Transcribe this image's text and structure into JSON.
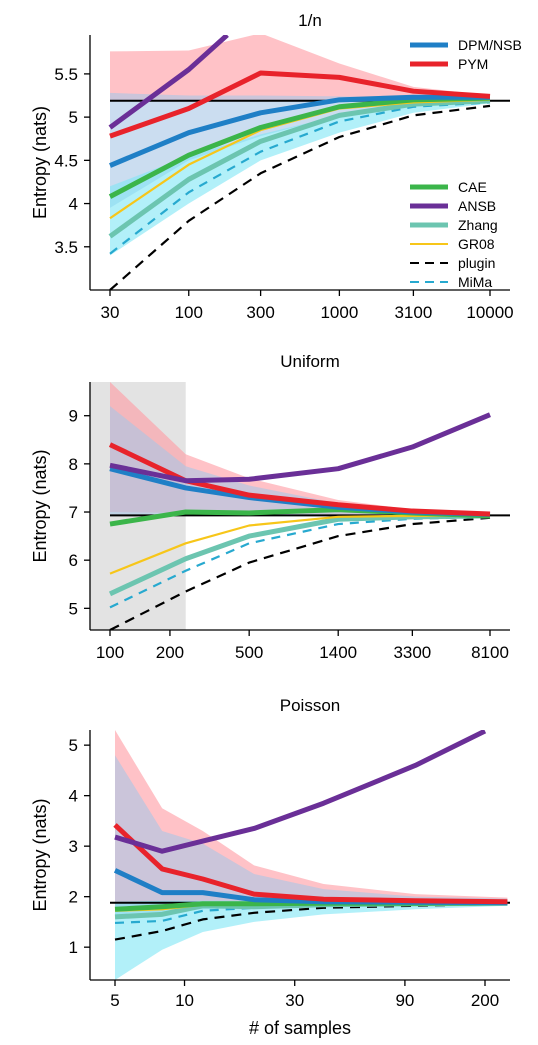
{
  "xlabel": "# of samples",
  "chart_data": [
    {
      "type": "line",
      "title": "1/n",
      "xlabel": "",
      "ylabel": "Entropy (nats)",
      "x_scale": "log",
      "xticks": [
        30,
        100,
        300,
        1000,
        3100,
        10000
      ],
      "xtick_labels": [
        "30",
        "100",
        "300",
        "1000",
        "3100",
        "10000"
      ],
      "yticks": [
        3.5,
        4,
        4.5,
        5,
        5.5
      ],
      "ytick_labels": [
        "3.5",
        "4",
        "4.5",
        "5",
        "5.5"
      ],
      "ylim": [
        3.0,
        5.95
      ],
      "true_entropy": 5.19,
      "legend": [
        {
          "name": "DPM/NSB",
          "color": "#1f7fc6",
          "style": "solid",
          "width": 5
        },
        {
          "name": "PYM",
          "color": "#e8232b",
          "style": "solid",
          "width": 5
        },
        {
          "name": "CAE",
          "color": "#3bb54a",
          "style": "solid",
          "width": 5
        },
        {
          "name": "ANSB",
          "color": "#6a2f97",
          "style": "solid",
          "width": 5
        },
        {
          "name": "Zhang",
          "color": "#6cc5b0",
          "style": "solid",
          "width": 5
        },
        {
          "name": "GR08",
          "color": "#f7c619",
          "style": "solid",
          "width": 2
        },
        {
          "name": "plugin",
          "color": "#000000",
          "style": "dashed",
          "width": 2
        },
        {
          "name": "MiMa",
          "color": "#27a9cf",
          "style": "dashed",
          "width": 2
        }
      ],
      "bands": [
        {
          "name": "PYM",
          "color": "#ff9aa2",
          "opacity": 0.6,
          "x": [
            30,
            100,
            300,
            1000,
            3100,
            10000
          ],
          "upper": [
            5.76,
            5.77,
            5.97,
            5.62,
            5.35,
            5.25
          ],
          "lower": [
            5.18,
            5.18,
            5.18,
            5.18,
            5.18,
            5.18
          ]
        },
        {
          "name": "DPM/NSB",
          "color": "#a9c7e6",
          "opacity": 0.6,
          "x": [
            30,
            100,
            300,
            1000,
            3100,
            10000
          ],
          "upper": [
            5.28,
            5.25,
            5.25,
            5.24,
            5.23,
            5.23
          ],
          "lower": [
            3.95,
            4.5,
            4.78,
            5.02,
            5.15,
            5.19
          ]
        },
        {
          "name": "Zhang",
          "color": "#7fe6f5",
          "opacity": 0.6,
          "x": [
            30,
            100,
            300,
            1000,
            3100,
            10000
          ],
          "upper": [
            4.2,
            4.55,
            4.8,
            5.02,
            5.13,
            5.17
          ],
          "lower": [
            3.4,
            4.0,
            4.5,
            4.82,
            5.05,
            5.16
          ]
        }
      ],
      "series": [
        {
          "name": "plugin",
          "color": "#000000",
          "dash": "10,7",
          "width": 2.2,
          "x": [
            30,
            100,
            300,
            1000,
            3100,
            10000
          ],
          "y": [
            3.0,
            3.8,
            4.35,
            4.77,
            5.02,
            5.13
          ]
        },
        {
          "name": "MiMa",
          "color": "#27a9cf",
          "dash": "9,7",
          "width": 2.2,
          "x": [
            30,
            100,
            300,
            1000,
            3100,
            10000
          ],
          "y": [
            3.42,
            4.13,
            4.6,
            4.95,
            5.12,
            5.17
          ]
        },
        {
          "name": "Zhang",
          "color": "#6cc5b0",
          "dash": "",
          "width": 5,
          "x": [
            30,
            100,
            300,
            1000,
            3100,
            10000
          ],
          "y": [
            3.62,
            4.28,
            4.72,
            5.02,
            5.15,
            5.19
          ]
        },
        {
          "name": "GR08",
          "color": "#f7c619",
          "dash": "",
          "width": 2.2,
          "x": [
            30,
            100,
            300,
            1000,
            3100,
            10000
          ],
          "y": [
            3.83,
            4.45,
            4.85,
            5.1,
            5.17,
            5.2
          ]
        },
        {
          "name": "CAE",
          "color": "#3bb54a",
          "dash": "",
          "width": 5,
          "x": [
            30,
            100,
            300,
            1000,
            3100,
            10000
          ],
          "y": [
            4.08,
            4.56,
            4.88,
            5.12,
            5.2,
            5.22
          ]
        },
        {
          "name": "DPM/NSB",
          "color": "#1f7fc6",
          "dash": "",
          "width": 5,
          "x": [
            30,
            100,
            300,
            1000,
            3100,
            10000
          ],
          "y": [
            4.44,
            4.82,
            5.05,
            5.2,
            5.23,
            5.23
          ]
        },
        {
          "name": "PYM",
          "color": "#e8232b",
          "dash": "",
          "width": 5,
          "x": [
            30,
            100,
            300,
            1000,
            3100,
            10000
          ],
          "y": [
            4.78,
            5.1,
            5.51,
            5.46,
            5.3,
            5.24
          ]
        },
        {
          "name": "ANSB",
          "color": "#6a2f97",
          "dash": "",
          "width": 5,
          "x": [
            30,
            100,
            180
          ],
          "y": [
            4.88,
            5.55,
            5.95
          ]
        }
      ]
    },
    {
      "type": "line",
      "title": "Uniform",
      "xlabel": "",
      "ylabel": "Entropy (nats)",
      "x_scale": "log",
      "xticks": [
        100,
        200,
        500,
        1400,
        3300,
        8100
      ],
      "xtick_labels": [
        "100",
        "200",
        "500",
        "1400",
        "3300",
        "8100"
      ],
      "yticks": [
        5,
        6,
        7,
        8,
        9
      ],
      "ytick_labels": [
        "5",
        "6",
        "7",
        "8",
        "9"
      ],
      "ylim": [
        4.55,
        9.7
      ],
      "true_entropy": 6.93,
      "shaded_x_range": [
        100,
        240
      ],
      "bands": [
        {
          "name": "PYM",
          "color": "#ff9aa2",
          "opacity": 0.6,
          "x": [
            100,
            240,
            500,
            1400,
            3300,
            8100
          ],
          "upper": [
            9.7,
            8.2,
            7.7,
            7.25,
            7.05,
            6.98
          ],
          "lower": [
            7.0,
            6.98,
            6.97,
            6.95,
            6.94,
            6.93
          ]
        },
        {
          "name": "DPM/NSB",
          "color": "#a9c7e6",
          "opacity": 0.6,
          "x": [
            100,
            240,
            500,
            1400,
            3300,
            8100
          ],
          "upper": [
            9.2,
            7.95,
            7.55,
            7.18,
            7.02,
            6.96
          ],
          "lower": [
            6.95,
            6.95,
            6.94,
            6.93,
            6.93,
            6.92
          ]
        }
      ],
      "series": [
        {
          "name": "plugin",
          "color": "#000000",
          "dash": "10,7",
          "width": 2.2,
          "x": [
            100,
            240,
            500,
            1400,
            3300,
            8100
          ],
          "y": [
            4.55,
            5.35,
            5.95,
            6.5,
            6.75,
            6.88
          ]
        },
        {
          "name": "MiMa",
          "color": "#27a9cf",
          "dash": "9,7",
          "width": 2.2,
          "x": [
            100,
            240,
            500,
            1400,
            3300,
            8100
          ],
          "y": [
            5.02,
            5.78,
            6.35,
            6.75,
            6.86,
            6.9
          ]
        },
        {
          "name": "Zhang",
          "color": "#6cc5b0",
          "dash": "",
          "width": 5,
          "x": [
            100,
            240,
            500,
            1400,
            3300,
            8100
          ],
          "y": [
            5.3,
            6.03,
            6.5,
            6.85,
            6.9,
            6.92
          ]
        },
        {
          "name": "GR08",
          "color": "#f7c619",
          "dash": "",
          "width": 2.2,
          "x": [
            100,
            240,
            500,
            1400,
            3300,
            8100
          ],
          "y": [
            5.72,
            6.35,
            6.72,
            6.9,
            6.92,
            6.93
          ]
        },
        {
          "name": "CAE",
          "color": "#3bb54a",
          "dash": "",
          "width": 5,
          "x": [
            100,
            240,
            500,
            1400,
            3300,
            8100
          ],
          "y": [
            6.75,
            7.0,
            6.98,
            7.05,
            6.98,
            6.92
          ]
        },
        {
          "name": "DPM/NSB",
          "color": "#1f7fc6",
          "dash": "",
          "width": 5,
          "x": [
            100,
            240,
            500,
            1400,
            3300,
            8100
          ],
          "y": [
            7.9,
            7.5,
            7.3,
            7.1,
            7.0,
            6.95
          ]
        },
        {
          "name": "PYM",
          "color": "#e8232b",
          "dash": "",
          "width": 5,
          "x": [
            100,
            240,
            500,
            1400,
            3300,
            8100
          ],
          "y": [
            8.4,
            7.65,
            7.35,
            7.15,
            7.02,
            6.96
          ]
        },
        {
          "name": "ANSB",
          "color": "#6a2f97",
          "dash": "",
          "width": 5,
          "x": [
            100,
            240,
            500,
            1400,
            3300,
            8100
          ],
          "y": [
            7.97,
            7.65,
            7.68,
            7.9,
            8.35,
            9.02
          ]
        }
      ]
    },
    {
      "type": "line",
      "title": "Poisson",
      "xlabel": "# of samples",
      "ylabel": "Entropy (nats)",
      "x_scale": "log",
      "xticks": [
        5,
        10,
        30,
        90,
        200
      ],
      "xtick_labels": [
        "5",
        "10",
        "30",
        "90",
        "200"
      ],
      "yticks": [
        1,
        2,
        3,
        4,
        5
      ],
      "ytick_labels": [
        "1",
        "2",
        "3",
        "4",
        "5"
      ],
      "ylim": [
        0.35,
        5.3
      ],
      "true_entropy": 1.88,
      "bands": [
        {
          "name": "PYM",
          "color": "#ff9aa2",
          "opacity": 0.6,
          "x": [
            5,
            8,
            12,
            20,
            40,
            100,
            250
          ],
          "upper": [
            5.3,
            3.75,
            3.3,
            2.62,
            2.25,
            2.05,
            1.98
          ],
          "lower": [
            1.75,
            1.78,
            1.8,
            1.82,
            1.84,
            1.86,
            1.87
          ]
        },
        {
          "name": "DPM/NSB",
          "color": "#a9c7e6",
          "opacity": 0.6,
          "x": [
            5,
            8,
            12,
            20,
            40,
            100,
            250
          ],
          "upper": [
            4.8,
            3.3,
            3.05,
            2.45,
            2.15,
            2.0,
            1.96
          ],
          "lower": [
            1.6,
            1.7,
            1.75,
            1.78,
            1.82,
            1.84,
            1.86
          ]
        },
        {
          "name": "Zhang",
          "color": "#7fe6f5",
          "opacity": 0.6,
          "x": [
            5,
            8,
            12,
            20,
            40,
            100,
            250
          ],
          "upper": [
            1.9,
            1.92,
            1.92,
            1.92,
            1.92,
            1.92,
            1.92
          ],
          "lower": [
            0.35,
            0.95,
            1.3,
            1.5,
            1.65,
            1.75,
            1.82
          ]
        }
      ],
      "series": [
        {
          "name": "plugin",
          "color": "#000000",
          "dash": "10,7",
          "width": 2.2,
          "x": [
            5,
            8,
            12,
            20,
            40,
            100,
            250
          ],
          "y": [
            1.15,
            1.32,
            1.55,
            1.68,
            1.78,
            1.82,
            1.86
          ]
        },
        {
          "name": "MiMa",
          "color": "#27a9cf",
          "dash": "9,7",
          "width": 2.2,
          "x": [
            5,
            8,
            12,
            20,
            40,
            100,
            250
          ],
          "y": [
            1.48,
            1.52,
            1.72,
            1.78,
            1.82,
            1.85,
            1.87
          ]
        },
        {
          "name": "Zhang",
          "color": "#6cc5b0",
          "dash": "",
          "width": 5,
          "x": [
            5,
            8,
            12,
            20,
            40,
            100,
            250
          ],
          "y": [
            1.6,
            1.65,
            1.82,
            1.8,
            1.84,
            1.86,
            1.87
          ]
        },
        {
          "name": "GR08",
          "color": "#f7c619",
          "dash": "",
          "width": 2.2,
          "x": [
            5,
            8,
            12,
            20,
            40,
            100,
            250
          ],
          "y": [
            1.72,
            1.75,
            1.84,
            1.84,
            1.86,
            1.87,
            1.88
          ]
        },
        {
          "name": "CAE",
          "color": "#3bb54a",
          "dash": "",
          "width": 5,
          "x": [
            5,
            8,
            12,
            20,
            40,
            100,
            250
          ],
          "y": [
            1.75,
            1.8,
            1.86,
            1.86,
            1.87,
            1.87,
            1.88
          ]
        },
        {
          "name": "DPM/NSB",
          "color": "#1f7fc6",
          "dash": "",
          "width": 5,
          "x": [
            5,
            8,
            12,
            20,
            40,
            100,
            250
          ],
          "y": [
            2.52,
            2.08,
            2.08,
            1.94,
            1.9,
            1.89,
            1.88
          ]
        },
        {
          "name": "PYM",
          "color": "#e8232b",
          "dash": "",
          "width": 5,
          "x": [
            5,
            8,
            12,
            20,
            40,
            100,
            250
          ],
          "y": [
            3.42,
            2.55,
            2.35,
            2.05,
            1.95,
            1.92,
            1.9
          ]
        },
        {
          "name": "ANSB",
          "color": "#6a2f97",
          "dash": "",
          "width": 5,
          "x": [
            5,
            8,
            12,
            20,
            40,
            100,
            200
          ],
          "y": [
            3.18,
            2.9,
            3.1,
            3.35,
            3.85,
            4.6,
            5.28
          ]
        }
      ]
    }
  ]
}
